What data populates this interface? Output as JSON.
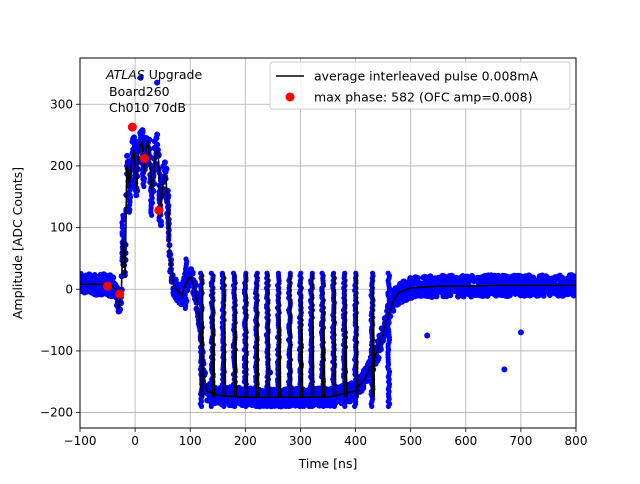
{
  "chart_data": {
    "type": "scatter",
    "xlabel": "Time [ns]",
    "ylabel": "Amplitude [ADC Counts]",
    "xlim": [
      -100,
      800
    ],
    "ylim": [
      -225,
      375
    ],
    "xticks": [
      -100,
      0,
      100,
      200,
      300,
      400,
      500,
      600,
      700,
      800
    ],
    "yticks": [
      -200,
      -100,
      0,
      100,
      200,
      300
    ],
    "grid": true,
    "legend_position": "top-right",
    "annotation": {
      "line1_italic": "ATLAS",
      "line1_rest": " Upgrade",
      "line2": "Board260",
      "line3": "Ch010 70dB"
    },
    "series": [
      {
        "name": "average interleaved pulse 0.008mA",
        "kind": "line",
        "color": "#000000",
        "x": [
          -100,
          -60,
          -40,
          -35,
          -30,
          -25,
          -22,
          -18,
          -15,
          -12,
          -10,
          -8,
          -5,
          -2,
          0,
          3,
          6,
          10,
          13,
          16,
          20,
          23,
          26,
          30,
          33,
          36,
          40,
          43,
          46,
          50,
          53,
          56,
          60,
          63,
          66,
          70,
          75,
          80,
          85,
          90,
          95,
          100,
          105,
          110,
          115,
          120,
          125,
          130,
          150,
          200,
          250,
          300,
          350,
          400,
          420,
          440,
          450,
          460,
          470,
          480,
          500,
          550,
          600,
          650,
          700,
          750,
          800
        ],
        "y": [
          8,
          8,
          5,
          0,
          -30,
          -5,
          80,
          20,
          200,
          190,
          165,
          195,
          215,
          225,
          200,
          160,
          215,
          235,
          240,
          190,
          225,
          240,
          220,
          160,
          180,
          215,
          225,
          205,
          120,
          165,
          185,
          180,
          120,
          50,
          30,
          5,
          0,
          -5,
          -10,
          5,
          15,
          20,
          10,
          -5,
          -40,
          -90,
          -140,
          -165,
          -172,
          -175,
          -175,
          -175,
          -175,
          -165,
          -140,
          -100,
          -70,
          -40,
          -15,
          -5,
          2,
          5,
          5,
          6,
          6,
          6,
          6
        ]
      },
      {
        "name": "max phase: 582 (OFC amp=0.008)",
        "kind": "points",
        "color": "#ff0000",
        "x": [
          -50,
          -28,
          -5,
          17,
          43
        ],
        "y": [
          5,
          -8,
          263,
          212,
          128
        ]
      }
    ],
    "raw_samples": {
      "color": "#0000ff",
      "spike_x": [
        -22,
        -10,
        0,
        15,
        30,
        45,
        60,
        92,
        120,
        140,
        160,
        180,
        200,
        220,
        240,
        260,
        280,
        300,
        320,
        340,
        360,
        380,
        400,
        430,
        460
      ],
      "outliers": [
        {
          "x": 10,
          "y": 343
        },
        {
          "x": 40,
          "y": 335
        },
        {
          "x": 160,
          "y": -130
        },
        {
          "x": 245,
          "y": -135
        },
        {
          "x": 300,
          "y": -95
        },
        {
          "x": 320,
          "y": -100
        },
        {
          "x": 380,
          "y": -130
        },
        {
          "x": 430,
          "y": -130
        },
        {
          "x": 530,
          "y": -75
        },
        {
          "x": 670,
          "y": -130
        },
        {
          "x": 700,
          "y": -70
        }
      ]
    }
  }
}
